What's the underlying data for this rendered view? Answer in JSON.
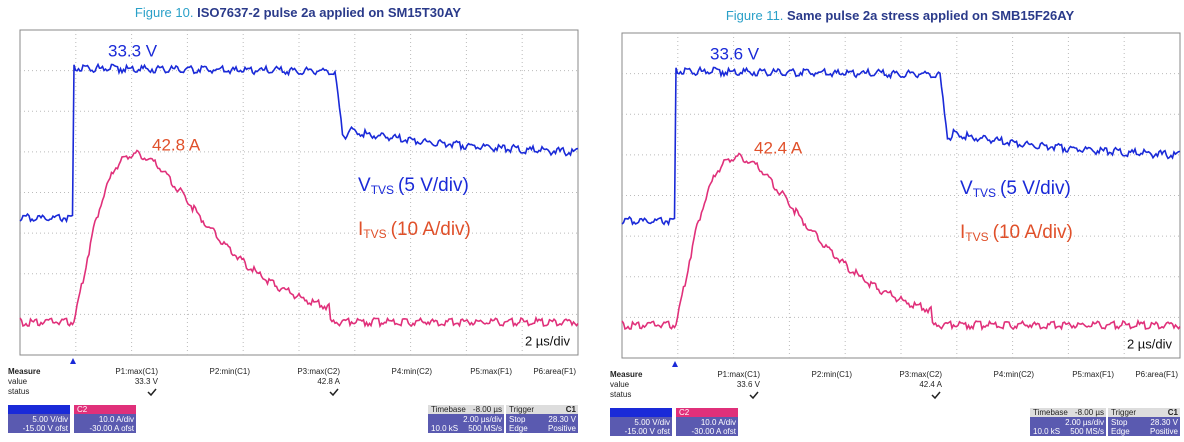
{
  "figures": [
    {
      "label": "Figure 10.",
      "title": "ISO7637-2 pulse 2a applied on SM15T30AY",
      "peak_v": "33.3 V",
      "peak_i": "42.8 A",
      "v_trace": {
        "main": "V",
        "sub": "TVS",
        "scale": "(5 V/div)"
      },
      "i_trace": {
        "main": "I",
        "sub": "TVS",
        "scale": "(10 A/div)"
      },
      "time_div": "2 µs/div",
      "measure": {
        "heading": "Measure",
        "params": [
          "P1:max(C1)",
          "P2:min(C1)",
          "P3:max(C2)",
          "P4:min(C2)",
          "P5:max(F1)",
          "P6:area(F1)"
        ],
        "value_row": "value",
        "p1_value": "33.3 V",
        "p3_value": "42.8 A",
        "status_row": "status"
      },
      "scope": {
        "c1_scale": "5.00 V/div",
        "c1_offset": "-15.00 V ofst",
        "c2_name": "C2",
        "c2_scale": "10.0 A/div",
        "c2_offset": "-30.00 A ofst",
        "timebase_label": "Timebase",
        "timebase_value": "-8.00 µs",
        "trigger_label": "Trigger",
        "trigger_channel": "C1",
        "horiz": "2.00 µs/div",
        "mode": "Stop",
        "level": "28.30 V",
        "samples": "10.0 kS",
        "rate": "500 MS/s",
        "coupling": "Edge",
        "slope": "Positive"
      }
    },
    {
      "label": "Figure 11.",
      "title": "Same pulse 2a stress applied on SMB15F26AY",
      "peak_v": "33.6 V",
      "peak_i": "42.4 A",
      "v_trace": {
        "main": "V",
        "sub": "TVS",
        "scale": "(5 V/div)"
      },
      "i_trace": {
        "main": "I",
        "sub": "TVS",
        "scale": "(10 A/div)"
      },
      "time_div": "2 µs/div",
      "measure": {
        "heading": "Measure",
        "params": [
          "P1:max(C1)",
          "P2:min(C1)",
          "P3:max(C2)",
          "P4:min(C2)",
          "P5:max(F1)",
          "P6:area(F1)"
        ],
        "value_row": "value",
        "p1_value": "33.6 V",
        "p3_value": "42.4 A",
        "status_row": "status"
      },
      "scope": {
        "c1_scale": "5.00 V/div",
        "c1_offset": "-15.00 V ofst",
        "c2_name": "C2",
        "c2_scale": "10.0 A/div",
        "c2_offset": "-30.00 A ofst",
        "timebase_label": "Timebase",
        "timebase_value": "-8.00 µs",
        "trigger_label": "Trigger",
        "trigger_channel": "C1",
        "horiz": "2.00 µs/div",
        "mode": "Stop",
        "level": "28.30 V",
        "samples": "10.0 kS",
        "rate": "500 MS/s",
        "coupling": "Edge",
        "slope": "Positive"
      }
    }
  ]
}
